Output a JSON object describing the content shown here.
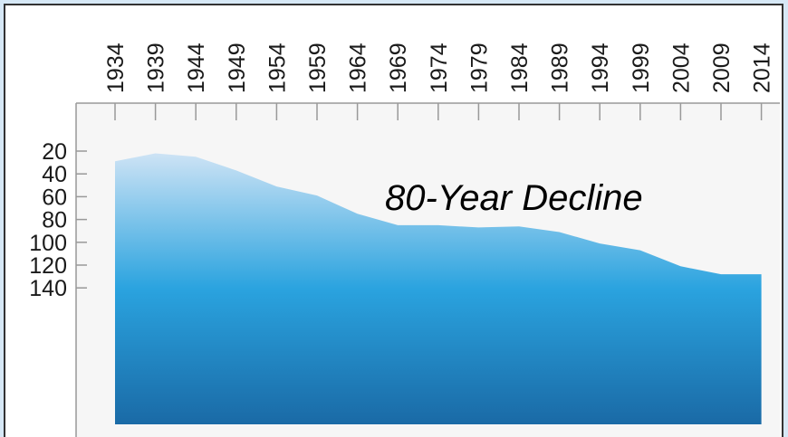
{
  "chart_data": {
    "type": "area",
    "title": "",
    "xlabel": "",
    "ylabel": "",
    "x": [
      1934,
      1939,
      1944,
      1949,
      1954,
      1959,
      1964,
      1969,
      1974,
      1979,
      1984,
      1989,
      1994,
      1999,
      2004,
      2009,
      2014
    ],
    "values": [
      29,
      22,
      25,
      37,
      51,
      59,
      75,
      85,
      85,
      87,
      86,
      91,
      101,
      107,
      121,
      128,
      128
    ],
    "x_ticks": [
      "1934",
      "1939",
      "1944",
      "1949",
      "1954",
      "1959",
      "1964",
      "1969",
      "1974",
      "1979",
      "1984",
      "1989",
      "1994",
      "1999",
      "2004",
      "2009",
      "2014"
    ],
    "y_ticks": [
      "20",
      "40",
      "60",
      "80",
      "100",
      "120",
      "140"
    ],
    "y_tick_values": [
      20,
      40,
      60,
      80,
      100,
      120,
      140
    ],
    "ylim": [
      12,
      140
    ],
    "y_inverted": true,
    "x_axis_position": "top",
    "grid": false,
    "annotation": "80-Year Decline",
    "colors": {
      "top": "#cde3f5",
      "middle": "#2aa3df",
      "bottom": "#1a6aa6",
      "axis": "#999999"
    }
  }
}
